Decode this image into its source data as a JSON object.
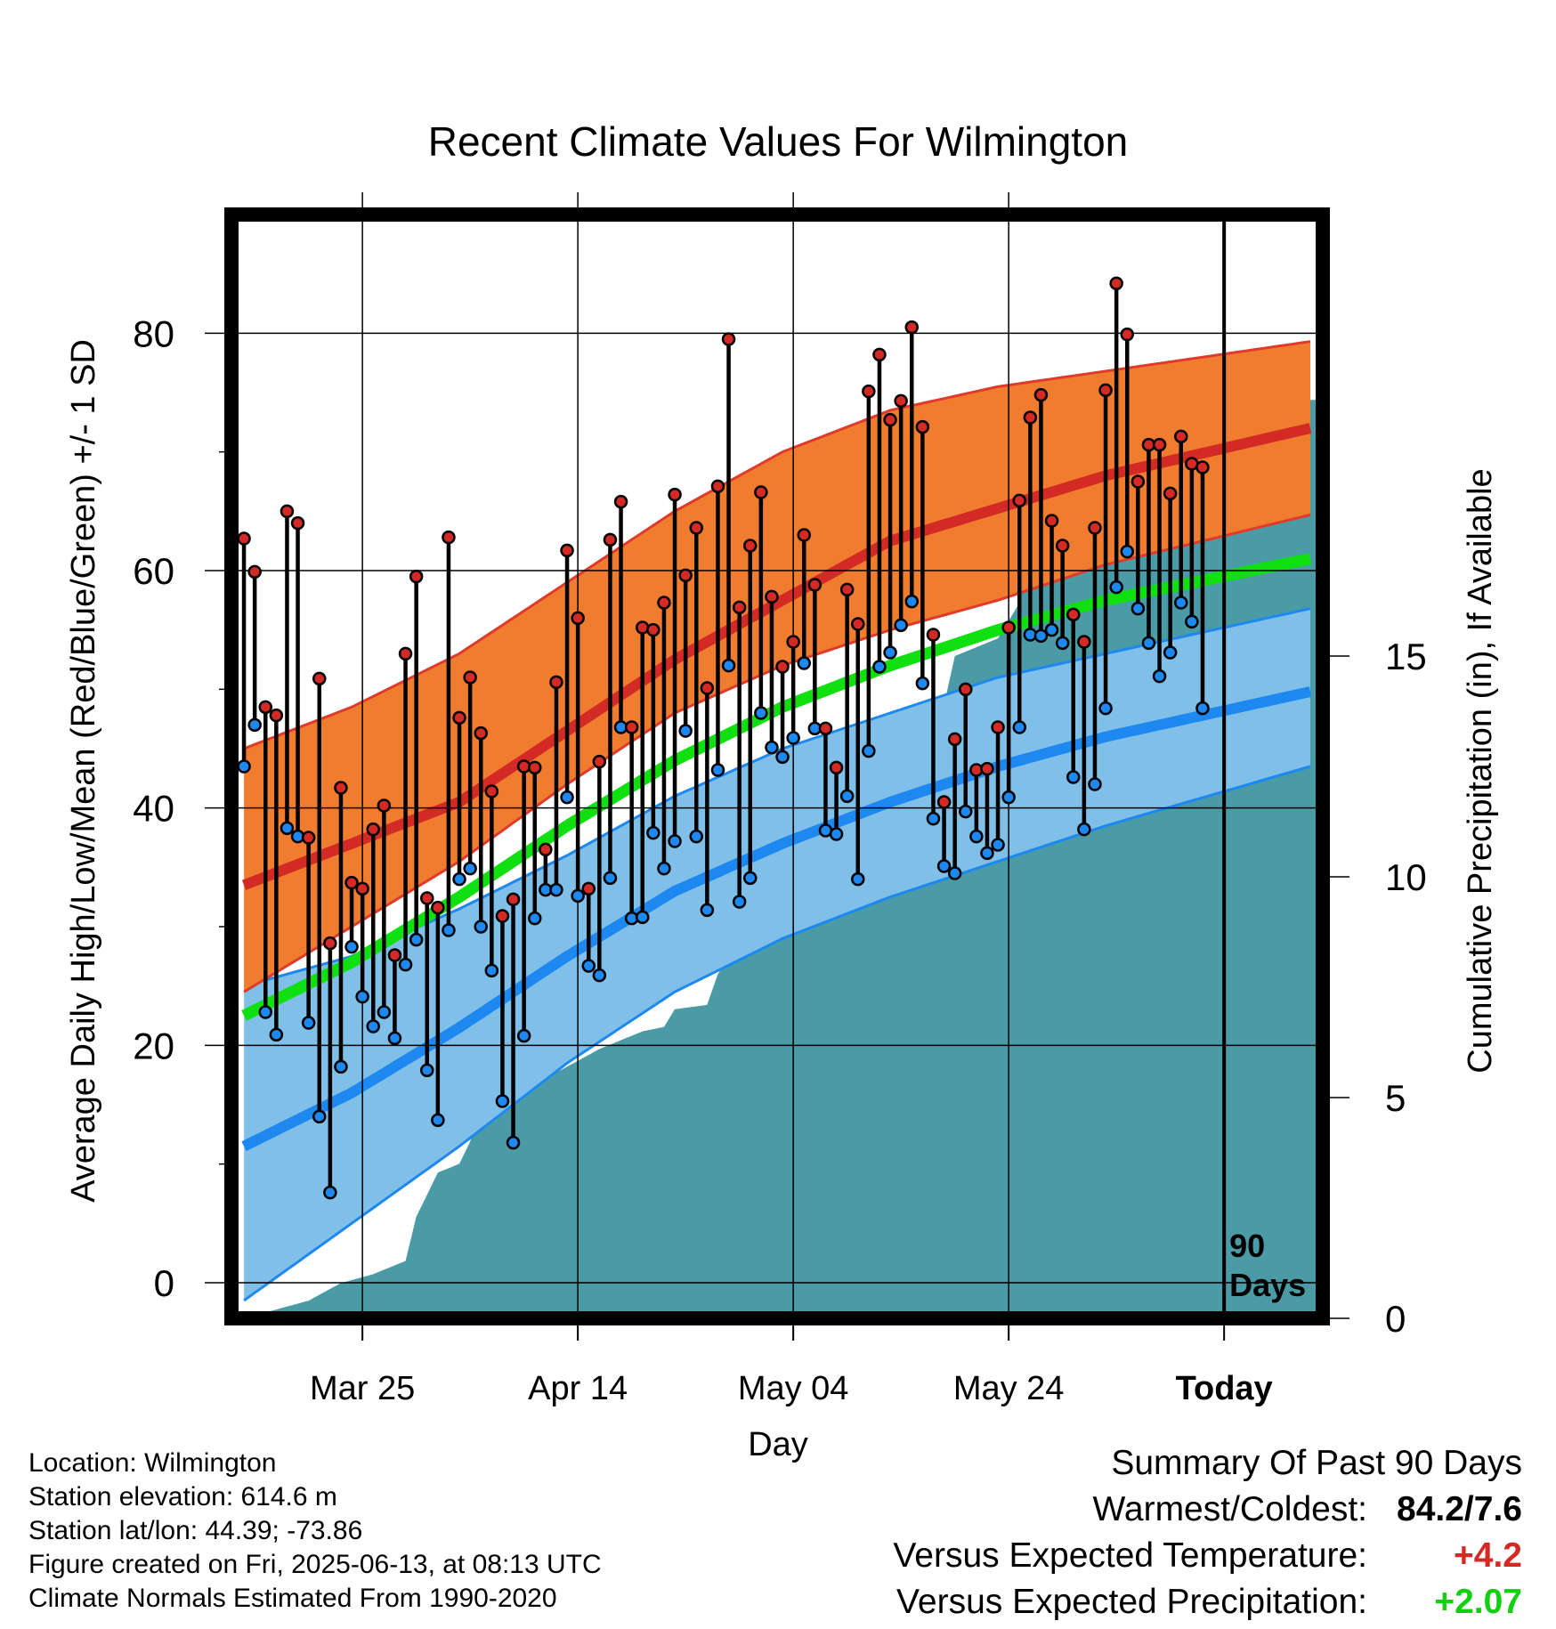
{
  "chart_data": {
    "type": "line",
    "title": "Recent Climate Values For Wilmington",
    "xlabel": "Day",
    "ylabel": "Average Daily High/Low/Mean (Red/Blue/Green) +/- 1 SD",
    "y2label": "Cumulative Precipitation (in), If Available",
    "x_tick_labels": [
      "Mar 25",
      "Apr 14",
      "May 04",
      "May 24",
      "Today"
    ],
    "x_tick_days": [
      11,
      31,
      51,
      71,
      91
    ],
    "xlim": [
      -0.5,
      99.5
    ],
    "ylim": [
      -3,
      90
    ],
    "y_ticks": [
      0,
      20,
      40,
      60,
      80
    ],
    "y2lim": [
      0,
      25
    ],
    "y2_ticks": [
      0,
      5,
      10,
      15
    ],
    "today_marker_label": [
      "90",
      "Days"
    ],
    "normal_high_mean": [
      [
        0,
        33.5
      ],
      [
        20,
        40.5
      ],
      [
        40,
        52.5
      ],
      [
        60,
        62.5
      ],
      [
        80,
        68.0
      ],
      [
        99,
        72.0
      ]
    ],
    "normal_high_upper": [
      [
        0,
        45.0
      ],
      [
        10,
        48.5
      ],
      [
        20,
        53.0
      ],
      [
        30,
        59.0
      ],
      [
        40,
        65.0
      ],
      [
        50,
        70.0
      ],
      [
        60,
        73.5
      ],
      [
        70,
        75.5
      ],
      [
        80,
        76.8
      ],
      [
        99,
        79.3
      ]
    ],
    "normal_high_lower": [
      [
        0,
        24.5
      ],
      [
        10,
        30.0
      ],
      [
        20,
        35.5
      ],
      [
        30,
        42.0
      ],
      [
        40,
        48.0
      ],
      [
        50,
        52.0
      ],
      [
        60,
        55.0
      ],
      [
        70,
        57.5
      ],
      [
        80,
        60.5
      ],
      [
        99,
        64.7
      ]
    ],
    "normal_mean": [
      [
        0,
        22.5
      ],
      [
        10,
        27.0
      ],
      [
        20,
        32.5
      ],
      [
        30,
        38.5
      ],
      [
        40,
        44.0
      ],
      [
        50,
        48.5
      ],
      [
        60,
        52.0
      ],
      [
        70,
        55.0
      ],
      [
        80,
        57.5
      ],
      [
        99,
        61.0
      ]
    ],
    "normal_low_mean": [
      [
        0,
        11.5
      ],
      [
        10,
        16.0
      ],
      [
        20,
        21.5
      ],
      [
        30,
        27.5
      ],
      [
        40,
        33.0
      ],
      [
        50,
        37.0
      ],
      [
        60,
        40.5
      ],
      [
        70,
        43.5
      ],
      [
        80,
        46.0
      ],
      [
        99,
        49.8
      ]
    ],
    "normal_low_upper": [
      [
        0,
        25.0
      ],
      [
        10,
        27.5
      ],
      [
        20,
        31.5
      ],
      [
        30,
        36.0
      ],
      [
        40,
        41.0
      ],
      [
        50,
        45.0
      ],
      [
        60,
        48.0
      ],
      [
        70,
        51.0
      ],
      [
        80,
        53.0
      ],
      [
        99,
        56.8
      ]
    ],
    "normal_low_lower": [
      [
        0,
        -1.5
      ],
      [
        10,
        5.0
      ],
      [
        20,
        11.5
      ],
      [
        30,
        18.5
      ],
      [
        40,
        24.5
      ],
      [
        50,
        29.0
      ],
      [
        60,
        32.5
      ],
      [
        70,
        35.5
      ],
      [
        80,
        38.5
      ],
      [
        99,
        43.5
      ]
    ],
    "daily_high": [
      62.7,
      59.9,
      48.5,
      47.8,
      65.0,
      64.0,
      37.5,
      50.9,
      28.6,
      41.7,
      33.7,
      33.2,
      38.2,
      40.2,
      27.6,
      53.0,
      59.5,
      32.4,
      31.6,
      62.8,
      47.6,
      51.0,
      46.3,
      41.4,
      30.9,
      32.3,
      43.5,
      43.4,
      36.5,
      50.6,
      61.7,
      56.0,
      33.2,
      43.9,
      62.6,
      65.8,
      46.8,
      55.2,
      55.0,
      57.3,
      66.4,
      59.6,
      63.6,
      50.1,
      67.1,
      79.5,
      56.9,
      62.1,
      66.6,
      57.8,
      51.9,
      54.0,
      63.0,
      58.8,
      46.7,
      43.4,
      58.4,
      55.5,
      75.1,
      78.2,
      72.7,
      74.3,
      80.5,
      72.1,
      54.6,
      40.5,
      45.8,
      50.0,
      43.2,
      43.3,
      46.8,
      55.2,
      65.9,
      72.9,
      74.8,
      64.2,
      62.1,
      56.3,
      54.0,
      63.6,
      75.2,
      84.2,
      79.9,
      67.5,
      70.6,
      70.6,
      66.5,
      71.3,
      69.0,
      68.7
    ],
    "daily_low": [
      43.5,
      47.0,
      22.8,
      20.9,
      38.3,
      37.6,
      21.9,
      14.0,
      7.6,
      18.2,
      28.3,
      24.1,
      21.6,
      22.8,
      20.6,
      26.8,
      28.9,
      17.9,
      13.7,
      29.7,
      34.0,
      34.9,
      30.0,
      26.3,
      15.3,
      11.8,
      20.8,
      30.7,
      33.1,
      33.1,
      40.9,
      32.6,
      26.7,
      25.9,
      34.1,
      46.8,
      30.7,
      30.8,
      37.9,
      34.9,
      37.2,
      46.5,
      37.6,
      31.4,
      43.2,
      52.0,
      32.1,
      34.1,
      48.0,
      45.1,
      44.3,
      45.9,
      52.2,
      46.7,
      38.1,
      37.8,
      41.0,
      34.0,
      44.8,
      51.9,
      53.1,
      55.4,
      57.4,
      50.5,
      39.1,
      35.1,
      34.5,
      39.7,
      37.6,
      36.2,
      36.9,
      40.9,
      46.8,
      54.6,
      54.5,
      55.0,
      53.9,
      42.6,
      38.2,
      42.0,
      48.4,
      58.6,
      61.6,
      56.8,
      53.9,
      51.1,
      53.1,
      57.3,
      55.7,
      48.4
    ],
    "cumulative_precip": [
      [
        0,
        0.0
      ],
      [
        3,
        0.2
      ],
      [
        6,
        0.4
      ],
      [
        9,
        0.8
      ],
      [
        12,
        1.0
      ],
      [
        15,
        1.3
      ],
      [
        16,
        2.3
      ],
      [
        18,
        3.3
      ],
      [
        20,
        3.5
      ],
      [
        21,
        4.0
      ],
      [
        22,
        4.8
      ],
      [
        24,
        4.9
      ],
      [
        27,
        5.3
      ],
      [
        30,
        5.7
      ],
      [
        33,
        6.1
      ],
      [
        35,
        6.3
      ],
      [
        37,
        6.5
      ],
      [
        39,
        6.6
      ],
      [
        40,
        7.0
      ],
      [
        43,
        7.1
      ],
      [
        44,
        7.8
      ],
      [
        46,
        8.5
      ],
      [
        48,
        9.3
      ],
      [
        50,
        9.6
      ],
      [
        52,
        10.1
      ],
      [
        53,
        10.5
      ],
      [
        56,
        11.4
      ],
      [
        57,
        12.4
      ],
      [
        60,
        13.4
      ],
      [
        63,
        13.5
      ],
      [
        65,
        13.9
      ],
      [
        66,
        15.0
      ],
      [
        70,
        15.4
      ],
      [
        72,
        16.2
      ],
      [
        73,
        17.5
      ],
      [
        76,
        17.8
      ],
      [
        77,
        18.0
      ],
      [
        80,
        18.3
      ],
      [
        82,
        18.5
      ],
      [
        85,
        18.8
      ],
      [
        88,
        19.4
      ],
      [
        90,
        19.6
      ],
      [
        92,
        19.8
      ],
      [
        94,
        20.1
      ],
      [
        96,
        20.4
      ],
      [
        99,
        20.8
      ]
    ]
  },
  "info": {
    "location": "Location: Wilmington",
    "elevation": "Station elevation: 614.6 m",
    "latlon": "Station lat/lon: 44.39; -73.86",
    "created": "Figure created on Fri, 2025-06-13, at 08:13 UTC",
    "normals": "Climate Normals Estimated From 1990-2020"
  },
  "summary": {
    "heading": "Summary Of Past 90 Days",
    "warmest_coldest_label": "Warmest/Coldest:",
    "warmest_coldest_value": "84.2/7.6",
    "temp_label": "Versus Expected Temperature:",
    "temp_value": "+4.2",
    "precip_label": "Versus Expected Precipitation:",
    "precip_value": "+2.07"
  },
  "colors": {
    "high_band": "#f07d2f",
    "high_band_edge": "#e03a2a",
    "high_mean": "#d42a25",
    "low_band": "#80c0e8",
    "low_band_edge": "#1c88f0",
    "low_mean": "#1c88f0",
    "mean_line": "#10e010",
    "precip_fill": "#4a9ba5",
    "high_dot": "#d42a25",
    "low_dot": "#1c88f0",
    "temp_anomaly": "#d42a25",
    "precip_anomaly": "#10d010"
  }
}
